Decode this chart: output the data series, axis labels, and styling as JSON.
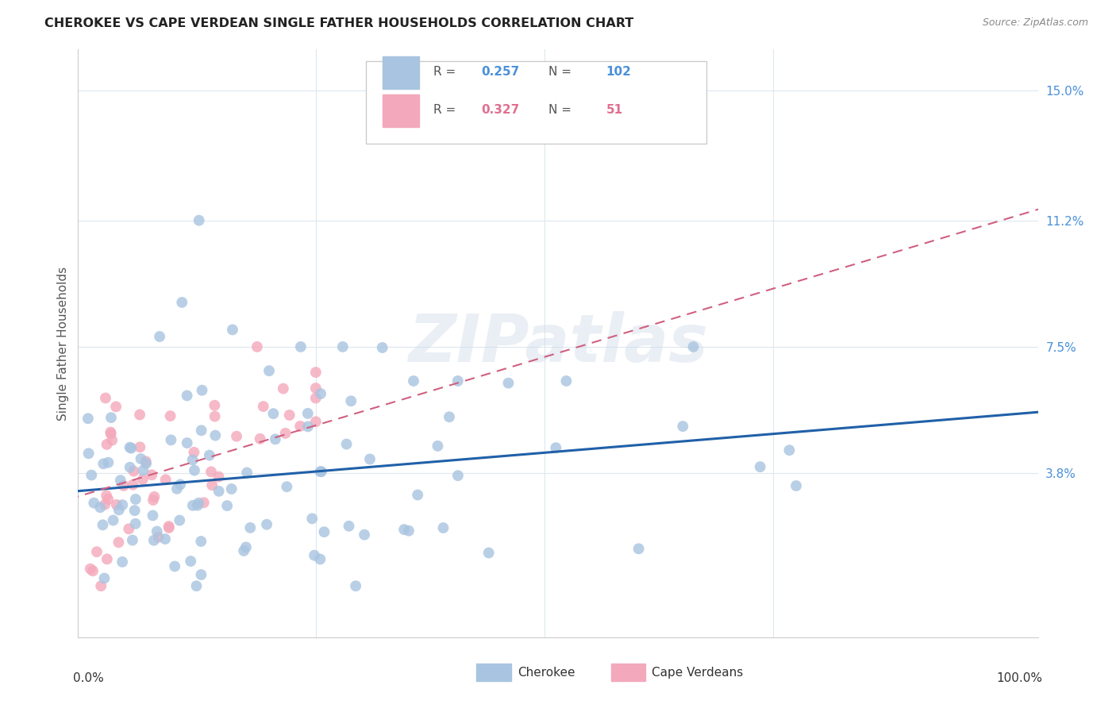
{
  "title": "CHEROKEE VS CAPE VERDEAN SINGLE FATHER HOUSEHOLDS CORRELATION CHART",
  "source": "Source: ZipAtlas.com",
  "ylabel": "Single Father Households",
  "ytick_labels": [
    "3.8%",
    "7.5%",
    "11.2%",
    "15.0%"
  ],
  "ytick_values": [
    0.038,
    0.075,
    0.112,
    0.15
  ],
  "cherokee_color": "#a8c4e0",
  "capeverdean_color": "#f4a8bb",
  "cherokee_line_color": "#2060a8",
  "capeverdean_line_color": "#d06080",
  "cherokee_R_color": "#4a90d9",
  "capeverdean_R_color": "#e07090",
  "legend_cherokee_R": "0.257",
  "legend_cherokee_N": "102",
  "legend_capeverdean_R": "0.327",
  "legend_capeverdean_N": "51",
  "watermark": "ZIPatlas",
  "background_color": "#ffffff",
  "grid_color": "#dce8f0"
}
